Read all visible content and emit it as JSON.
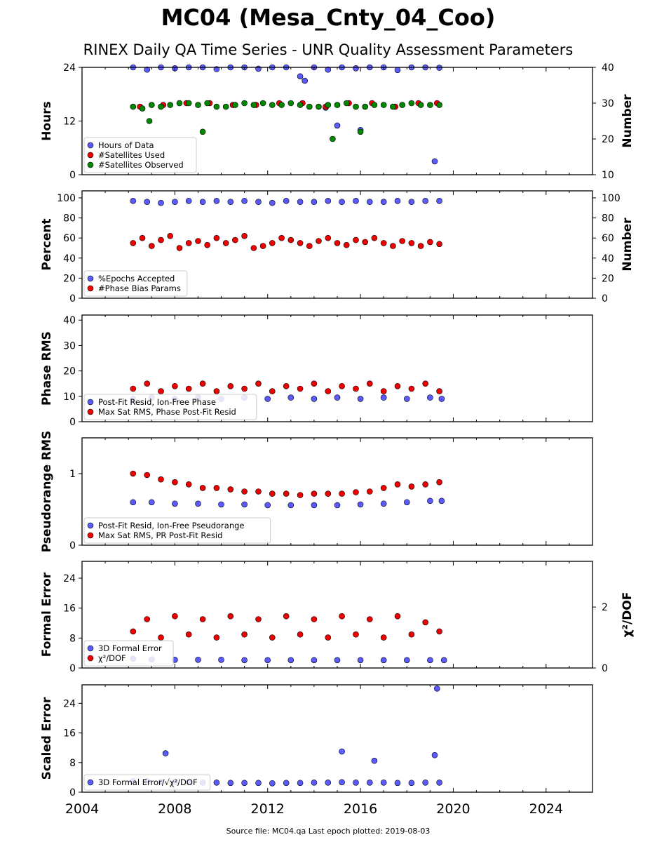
{
  "title": "MC04 (Mesa_Cnty_04_Coo)",
  "subtitle": "RINEX Daily QA Time Series - UNR Quality Assessment Parameters",
  "footer": "Source file: MC04.qa Last epoch plotted: 2019-08-03",
  "colors": {
    "blue": "#5a5aff",
    "red": "#ee0000",
    "green": "#008800"
  },
  "chart_data": [
    {
      "type": "scatter",
      "ylabel": "Hours",
      "ylabel_right": "Number",
      "xlim": [
        2004,
        2026
      ],
      "ylim": [
        0,
        24
      ],
      "ylim_right": [
        10,
        40
      ],
      "yticks": [
        "0",
        "12",
        "24"
      ],
      "yticks_right": [
        "10",
        "20",
        "30",
        "40"
      ],
      "legend_position": "lower-left",
      "series": [
        {
          "name": "Hours of Data",
          "color": "#5a5aff",
          "axis": "left",
          "x": [
            2006.2,
            2006.8,
            2007.4,
            2008.0,
            2008.6,
            2009.2,
            2009.8,
            2010.4,
            2011.0,
            2011.6,
            2012.2,
            2012.8,
            2013.4,
            2014.0,
            2014.6,
            2015.2,
            2015.8,
            2016.4,
            2017.0,
            2017.6,
            2018.2,
            2018.8,
            2019.4,
            2013.6,
            2014.5,
            2015.0,
            2016.0,
            2019.2
          ],
          "values": [
            24,
            23.5,
            24,
            23.8,
            24,
            24,
            23.6,
            24,
            24,
            23.7,
            24,
            24,
            22,
            24,
            23.5,
            24,
            23.8,
            24,
            24,
            23.4,
            24,
            24,
            23.9,
            21,
            15,
            11,
            10,
            3
          ]
        },
        {
          "name": "#Satellites Used",
          "color": "#ee0000",
          "axis": "right",
          "x": [
            2006.5,
            2007.5,
            2008.5,
            2009.5,
            2010.5,
            2011.5,
            2012.5,
            2013.5,
            2014.5,
            2015.5,
            2016.5,
            2017.5,
            2018.5,
            2019.3
          ],
          "values": [
            29,
            29.5,
            30,
            30,
            29.5,
            29.5,
            30,
            30,
            29,
            30,
            30,
            29,
            30,
            30
          ]
        },
        {
          "name": "#Satellites Observed",
          "color": "#008800",
          "axis": "right",
          "x": [
            2006.2,
            2006.6,
            2007.0,
            2007.4,
            2007.8,
            2008.2,
            2008.6,
            2009.0,
            2009.4,
            2009.8,
            2010.2,
            2010.6,
            2011.0,
            2011.4,
            2011.8,
            2012.2,
            2012.6,
            2013.0,
            2013.4,
            2013.8,
            2014.2,
            2014.6,
            2015.0,
            2015.4,
            2015.8,
            2016.2,
            2016.6,
            2017.0,
            2017.4,
            2017.8,
            2018.2,
            2018.6,
            2019.0,
            2019.4,
            2014.8,
            2016.0,
            2009.2,
            2006.9
          ],
          "values": [
            29,
            28.5,
            29.5,
            29,
            29.5,
            30,
            30,
            29.5,
            30,
            29,
            29,
            29.5,
            30,
            29.5,
            30,
            29.5,
            29.5,
            30,
            29.5,
            29,
            29,
            29.5,
            29.5,
            30,
            29,
            29,
            29.5,
            29.5,
            29,
            29.5,
            30,
            29.5,
            29.5,
            29.5,
            20,
            22,
            22,
            25
          ]
        }
      ]
    },
    {
      "type": "scatter",
      "ylabel": "Percent",
      "ylabel_right": "Number",
      "xlim": [
        2004,
        2026
      ],
      "ylim": [
        0,
        107
      ],
      "ylim_right": [
        0,
        107
      ],
      "yticks": [
        "0",
        "20",
        "40",
        "60",
        "80",
        "100"
      ],
      "yticks_right": [
        "0",
        "20",
        "40",
        "60",
        "80",
        "100"
      ],
      "legend_position": "lower-left",
      "series": [
        {
          "name": "%Epochs Accepted",
          "color": "#5a5aff",
          "axis": "left",
          "x": [
            2006.2,
            2006.8,
            2007.4,
            2008.0,
            2008.6,
            2009.2,
            2009.8,
            2010.4,
            2011.0,
            2011.6,
            2012.2,
            2012.8,
            2013.4,
            2014.0,
            2014.6,
            2015.2,
            2015.8,
            2016.4,
            2017.0,
            2017.6,
            2018.2,
            2018.8,
            2019.4
          ],
          "values": [
            97,
            96,
            95,
            96,
            97,
            96,
            97,
            96,
            97,
            96,
            95,
            97,
            96,
            96,
            97,
            96,
            97,
            96,
            96,
            97,
            96,
            97,
            97
          ]
        },
        {
          "name": "#Phase Bias Params",
          "color": "#ee0000",
          "axis": "right",
          "x": [
            2006.2,
            2006.6,
            2007.0,
            2007.4,
            2007.8,
            2008.2,
            2008.6,
            2009.0,
            2009.4,
            2009.8,
            2010.2,
            2010.6,
            2011.0,
            2011.4,
            2011.8,
            2012.2,
            2012.6,
            2013.0,
            2013.4,
            2013.8,
            2014.2,
            2014.6,
            2015.0,
            2015.4,
            2015.8,
            2016.2,
            2016.6,
            2017.0,
            2017.4,
            2017.8,
            2018.2,
            2018.6,
            2019.0,
            2019.4
          ],
          "values": [
            55,
            60,
            52,
            58,
            62,
            50,
            55,
            57,
            53,
            60,
            55,
            58,
            62,
            50,
            52,
            55,
            60,
            58,
            55,
            52,
            57,
            60,
            55,
            53,
            58,
            56,
            60,
            55,
            52,
            57,
            55,
            52,
            56,
            54
          ]
        }
      ]
    },
    {
      "type": "scatter",
      "ylabel": "Phase RMS",
      "xlim": [
        2004,
        2026
      ],
      "ylim": [
        0,
        42
      ],
      "yticks": [
        "0",
        "10",
        "20",
        "30",
        "40"
      ],
      "legend_position": "lower-left",
      "series": [
        {
          "name": "Post-Fit Resid, Ion-Free Phase",
          "color": "#5a5aff",
          "x": [
            2006.2,
            2007.0,
            2008.0,
            2009.0,
            2010.0,
            2011.0,
            2012.0,
            2013.0,
            2014.0,
            2015.0,
            2016.0,
            2017.0,
            2018.0,
            2019.0,
            2019.5
          ],
          "values": [
            9,
            9.5,
            9,
            9.5,
            9,
            9.5,
            9,
            9.5,
            9,
            9.5,
            9,
            9.5,
            9,
            9.5,
            9
          ]
        },
        {
          "name": "Max Sat RMS, Phase Post-Fit Resid",
          "color": "#ee0000",
          "x": [
            2006.2,
            2006.8,
            2007.4,
            2008.0,
            2008.6,
            2009.2,
            2009.8,
            2010.4,
            2011.0,
            2011.6,
            2012.2,
            2012.8,
            2013.4,
            2014.0,
            2014.6,
            2015.2,
            2015.8,
            2016.4,
            2017.0,
            2017.6,
            2018.2,
            2018.8,
            2019.4
          ],
          "values": [
            13,
            15,
            12,
            14,
            13,
            15,
            12,
            14,
            13,
            15,
            12,
            14,
            13,
            15,
            12,
            14,
            13,
            15,
            12,
            14,
            13,
            15,
            12
          ]
        }
      ]
    },
    {
      "type": "scatter",
      "ylabel": "Pseudorange RMS",
      "xlim": [
        2004,
        2026
      ],
      "ylim": [
        0,
        1.5
      ],
      "yticks": [
        "0",
        "1"
      ],
      "legend_position": "lower-left",
      "series": [
        {
          "name": "Post-Fit Resid, Ion-Free Pseudorange",
          "color": "#5a5aff",
          "x": [
            2006.2,
            2007.0,
            2008.0,
            2009.0,
            2010.0,
            2011.0,
            2012.0,
            2013.0,
            2014.0,
            2015.0,
            2016.0,
            2017.0,
            2018.0,
            2019.0,
            2019.5
          ],
          "values": [
            0.6,
            0.6,
            0.58,
            0.58,
            0.57,
            0.57,
            0.56,
            0.56,
            0.56,
            0.56,
            0.57,
            0.58,
            0.6,
            0.62,
            0.62
          ]
        },
        {
          "name": "Max Sat RMS, PR Post-Fit Resid",
          "color": "#ee0000",
          "x": [
            2006.2,
            2006.8,
            2007.4,
            2008.0,
            2008.6,
            2009.2,
            2009.8,
            2010.4,
            2011.0,
            2011.6,
            2012.2,
            2012.8,
            2013.4,
            2014.0,
            2014.6,
            2015.2,
            2015.8,
            2016.4,
            2017.0,
            2017.6,
            2018.2,
            2018.8,
            2019.4
          ],
          "values": [
            1.0,
            0.98,
            0.92,
            0.88,
            0.85,
            0.8,
            0.8,
            0.78,
            0.75,
            0.75,
            0.72,
            0.72,
            0.7,
            0.72,
            0.72,
            0.72,
            0.74,
            0.75,
            0.8,
            0.85,
            0.82,
            0.85,
            0.88
          ]
        }
      ]
    },
    {
      "type": "scatter",
      "ylabel": "Formal Error",
      "ylabel_right": "χ²/DOF",
      "xlim": [
        2004,
        2026
      ],
      "ylim": [
        0,
        28.5
      ],
      "ylim_right": [
        0,
        3.5
      ],
      "yticks": [
        "0",
        "8",
        "16",
        "24"
      ],
      "yticks_right": [
        "0",
        "2"
      ],
      "legend_position": "lower-left",
      "series": [
        {
          "name": "3D Formal Error",
          "color": "#5a5aff",
          "axis": "left",
          "x": [
            2006.2,
            2007.0,
            2008.0,
            2009.0,
            2010.0,
            2011.0,
            2012.0,
            2013.0,
            2014.0,
            2015.0,
            2016.0,
            2017.0,
            2018.0,
            2019.0,
            2019.6
          ],
          "values": [
            2.5,
            2.3,
            2.2,
            2.2,
            2.2,
            2.1,
            2.1,
            2.1,
            2.1,
            2.1,
            2.1,
            2.1,
            2.1,
            2.1,
            2.1
          ]
        },
        {
          "name": "χ²/DOF",
          "color": "#ee0000",
          "axis": "right",
          "x": [
            2006.2,
            2006.8,
            2007.4,
            2008.0,
            2008.6,
            2009.2,
            2009.8,
            2010.4,
            2011.0,
            2011.6,
            2012.2,
            2012.8,
            2013.4,
            2014.0,
            2014.6,
            2015.2,
            2015.8,
            2016.4,
            2017.0,
            2017.6,
            2018.2,
            2018.8,
            2019.4
          ],
          "values": [
            1.2,
            1.6,
            1.0,
            1.7,
            1.1,
            1.6,
            1.0,
            1.7,
            1.1,
            1.6,
            1.0,
            1.7,
            1.1,
            1.6,
            1.0,
            1.7,
            1.1,
            1.6,
            1.0,
            1.7,
            1.1,
            1.5,
            1.2
          ]
        }
      ]
    },
    {
      "type": "scatter",
      "ylabel": "Scaled Error",
      "xlim": [
        2004,
        2026
      ],
      "ylim": [
        0,
        29
      ],
      "yticks": [
        "0",
        "8",
        "16",
        "24"
      ],
      "xticks": [
        "2004",
        "2008",
        "2012",
        "2016",
        "2020",
        "2024"
      ],
      "legend_position": "lower-left",
      "series": [
        {
          "name": "3D Formal Error/√χ²/DOF",
          "color": "#5a5aff",
          "x": [
            2006.2,
            2006.8,
            2007.4,
            2008.0,
            2008.6,
            2009.2,
            2009.8,
            2010.4,
            2011.0,
            2011.6,
            2012.2,
            2012.8,
            2013.4,
            2014.0,
            2014.6,
            2015.2,
            2015.8,
            2016.4,
            2017.0,
            2017.6,
            2018.2,
            2018.8,
            2019.4,
            2007.6,
            2015.2,
            2016.6,
            2019.2,
            2019.3
          ],
          "values": [
            3,
            3,
            2.8,
            2.8,
            2.7,
            2.6,
            2.6,
            2.5,
            2.5,
            2.5,
            2.4,
            2.5,
            2.5,
            2.6,
            2.6,
            2.7,
            2.6,
            2.6,
            2.6,
            2.5,
            2.5,
            2.6,
            2.6,
            10.5,
            11,
            8.5,
            10,
            28
          ]
        }
      ]
    }
  ]
}
